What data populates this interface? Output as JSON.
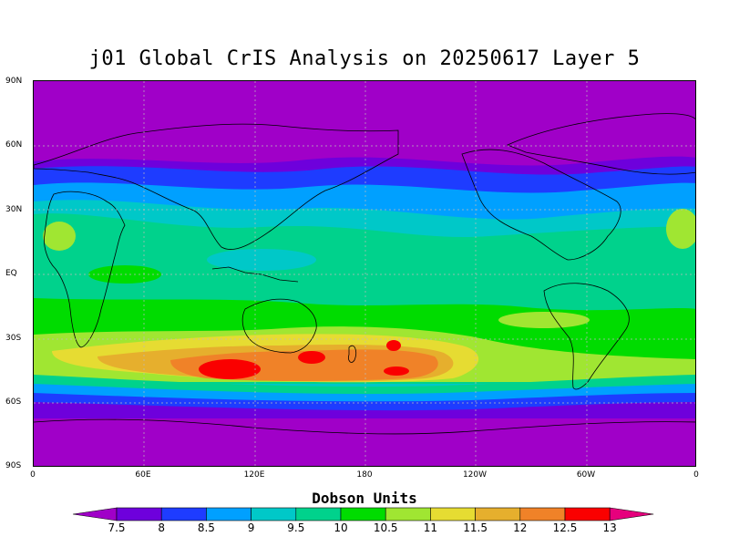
{
  "title": "j01 Global CrIS Analysis on 20250617 Layer 5",
  "lat_labels": [
    "90N",
    "60N",
    "30N",
    "EQ",
    "30S",
    "60S",
    "90S"
  ],
  "lon_labels": [
    "0",
    "60E",
    "120E",
    "180",
    "120W",
    "60W",
    "0"
  ],
  "colorbar": {
    "title": "Dobson Units",
    "labels": [
      "7.5",
      "8",
      "8.5",
      "9",
      "9.5",
      "10",
      "10.5",
      "11",
      "11.5",
      "12",
      "12.5",
      "13"
    ],
    "colors": [
      "#a000c8",
      "#6e00dc",
      "#1e3cff",
      "#00a0ff",
      "#00c8c8",
      "#00d28c",
      "#00dc00",
      "#a0e632",
      "#e6dc32",
      "#e6af2d",
      "#f08228",
      "#fa0000",
      "#e6007d"
    ]
  }
}
